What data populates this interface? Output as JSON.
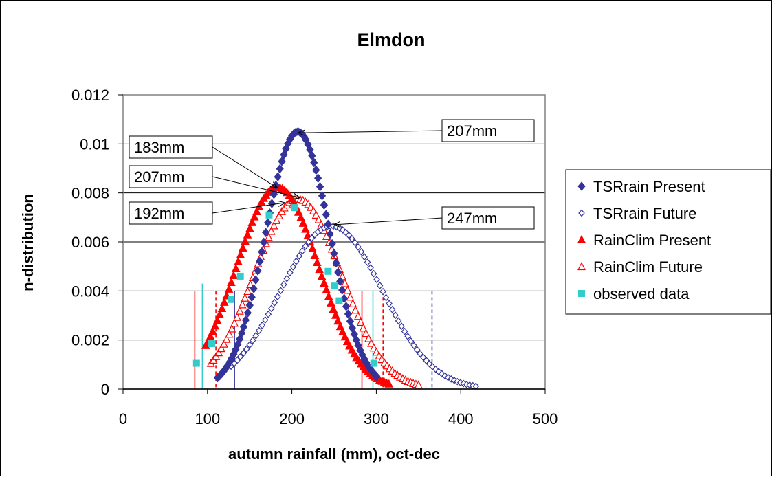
{
  "chart_data": {
    "type": "scatter",
    "title": "Elmdon",
    "xlabel": "autumn rainfall (mm), oct-dec",
    "ylabel": "n-distribution",
    "xlim": [
      0,
      500
    ],
    "ylim": [
      0,
      0.012
    ],
    "x_ticks": [
      "0",
      "100",
      "200",
      "300",
      "400",
      "500"
    ],
    "y_ticks": [
      "0",
      "0.002",
      "0.004",
      "0.006",
      "0.008",
      "0.01",
      "0.012"
    ],
    "grid": "horizontal",
    "legend_position": "right",
    "series": [
      {
        "name": "TSRrain Present",
        "color": "#333399",
        "marker": "diamond-filled",
        "gauss": {
          "mean": 207,
          "sd": 38,
          "n": 80,
          "xmin": 112,
          "xmax": 300
        }
      },
      {
        "name": "TSRrain Future",
        "color": "#333399",
        "marker": "diamond-open",
        "gauss": {
          "mean": 247,
          "sd": 60,
          "n": 80,
          "xmin": 128,
          "xmax": 418
        }
      },
      {
        "name": "RainClim Present",
        "color": "#ff0000",
        "marker": "triangle-filled",
        "gauss": {
          "mean": 183,
          "sd": 48.5,
          "n": 80,
          "xmin": 98,
          "xmax": 315
        }
      },
      {
        "name": "RainClim Future",
        "color": "#ff0000",
        "marker": "triangle-open",
        "gauss": {
          "mean": 207,
          "sd": 51.5,
          "n": 80,
          "xmin": 104,
          "xmax": 350
        }
      },
      {
        "name": "observed data",
        "color": "#33cccc",
        "marker": "square",
        "points": [
          [
            87,
            0.00105
          ],
          [
            105,
            0.00185
          ],
          [
            128,
            0.00365
          ],
          [
            139,
            0.0046
          ],
          [
            173,
            0.0071
          ],
          [
            203,
            0.0074
          ],
          [
            243,
            0.0048
          ],
          [
            250,
            0.0042
          ],
          [
            256,
            0.0036
          ],
          [
            297,
            0.00105
          ]
        ]
      }
    ],
    "vertical_lines": [
      {
        "x": 85,
        "y_top": 0.004,
        "color": "#ff0000",
        "dash": false
      },
      {
        "x": 94,
        "y_top": 0.0043,
        "color": "#33cccc",
        "dash": false
      },
      {
        "x": 110,
        "y_top": 0.004,
        "color": "#ff0000",
        "dash": true
      },
      {
        "x": 132,
        "y_top": 0.004,
        "color": "#333399",
        "dash": false
      },
      {
        "x": 283,
        "y_top": 0.004,
        "color": "#ff0000",
        "dash": false
      },
      {
        "x": 296,
        "y_top": 0.004,
        "color": "#33cccc",
        "dash": false
      },
      {
        "x": 308,
        "y_top": 0.004,
        "color": "#ff0000",
        "dash": true
      },
      {
        "x": 366,
        "y_top": 0.004,
        "color": "#333399",
        "dash": true
      }
    ],
    "annotations": [
      {
        "text": "207mm",
        "target": [
          207,
          0.01045
        ]
      },
      {
        "text": "183mm",
        "target": [
          183,
          0.0082
        ]
      },
      {
        "text": "207mm",
        "target": [
          210,
          0.0078
        ]
      },
      {
        "text": "192mm",
        "target": [
          192,
          0.0076
        ]
      },
      {
        "text": "247mm",
        "target": [
          249,
          0.0067
        ]
      }
    ]
  }
}
